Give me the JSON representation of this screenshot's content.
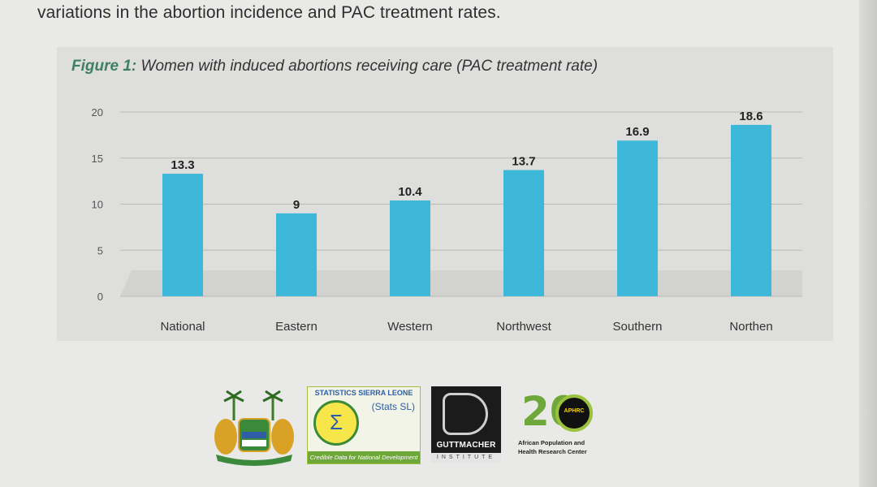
{
  "intro_text": "variations in the abortion incidence and PAC treatment rates.",
  "figure": {
    "label": "Figure 1:",
    "caption": "Women with induced abortions receiving care (PAC treatment rate)"
  },
  "chart_data": {
    "type": "bar",
    "title": "Women with induced abortions receiving care (PAC treatment rate)",
    "categories": [
      "National",
      "Eastern",
      "Western",
      "Northwest",
      "Southern",
      "Northen"
    ],
    "values": [
      13.3,
      9,
      10.4,
      13.7,
      16.9,
      18.6
    ],
    "value_labels": [
      "13.3",
      "9",
      "10.4",
      "13.7",
      "16.9",
      "18.6"
    ],
    "yticks": [
      0,
      5,
      10,
      15,
      20
    ],
    "ylim": [
      0,
      20
    ],
    "xlabel": "",
    "ylabel": "",
    "grid": true,
    "bar_color": "#3db8d8"
  },
  "logos": {
    "stats_sl": {
      "top": "STATISTICS SIERRA LEONE",
      "abbr": "(Stats SL)",
      "symbol": "Σ",
      "tagline": "Credible Data for National Development"
    },
    "guttmacher": {
      "name": "GUTTMACHER",
      "sub": "INSTITUTE"
    },
    "aphrc": {
      "number": "20",
      "badge": "APHRC",
      "text": "African Population and Health Research Center"
    }
  }
}
